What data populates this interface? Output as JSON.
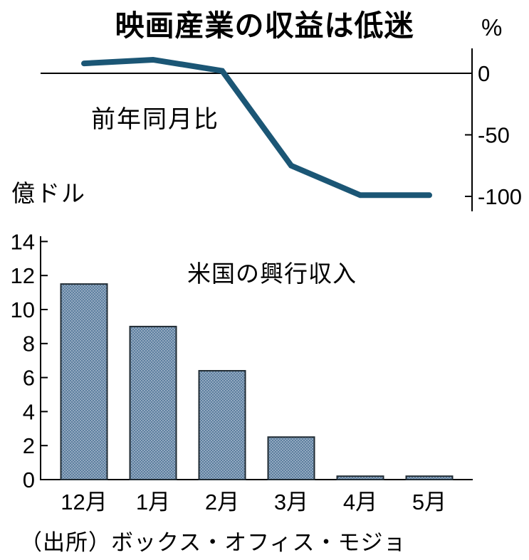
{
  "title": "映画産業の収益は低迷",
  "source_note": "（出所）ボックス・オフィス・モジョ",
  "colors": {
    "line": "#1b5675",
    "axis": "#000000",
    "bar_border": "#202b33",
    "bar_fill_light": "#93a9c0",
    "bar_fill_dark": "#5d7f9f"
  },
  "chart_data": [
    {
      "type": "line",
      "title": "前年同月比",
      "unit": "%",
      "categories": [
        "12月",
        "1月",
        "2月",
        "3月",
        "4月",
        "5月"
      ],
      "values": [
        8,
        11,
        2,
        -75,
        -99,
        -99
      ],
      "yticks": [
        0,
        -50,
        -100
      ],
      "ylim": [
        -110,
        15
      ],
      "grid": false,
      "axis_side": "right",
      "label_position": "inside-left"
    },
    {
      "type": "bar",
      "title": "米国の興行収入",
      "unit": "億ドル",
      "categories": [
        "12月",
        "1月",
        "2月",
        "3月",
        "4月",
        "5月"
      ],
      "values": [
        11.5,
        9.0,
        6.4,
        2.5,
        0.2,
        0.2
      ],
      "yticks": [
        0,
        2,
        4,
        6,
        8,
        10,
        12,
        14
      ],
      "ylim": [
        0,
        14
      ],
      "grid": false,
      "axis_side": "left"
    }
  ]
}
